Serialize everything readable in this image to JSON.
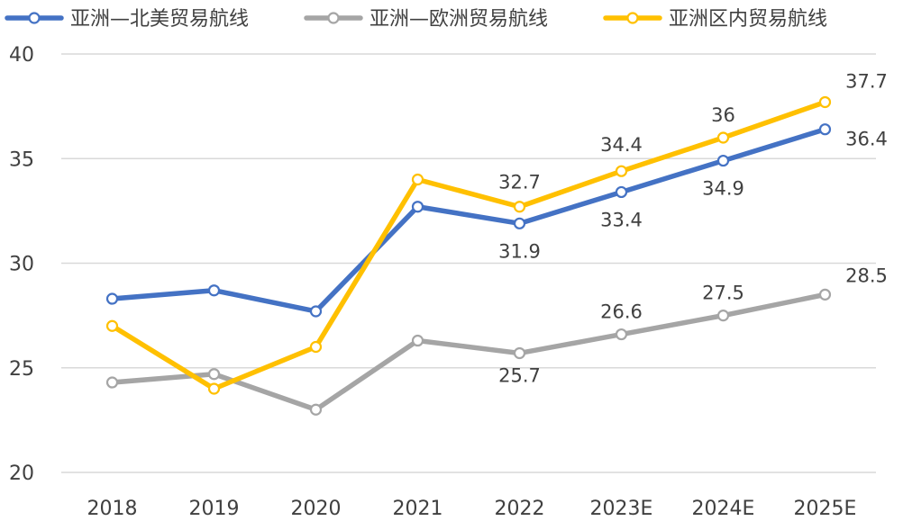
{
  "chart_data": {
    "type": "line",
    "title": "",
    "xlabel": "",
    "ylabel": "",
    "categories": [
      "2018",
      "2019",
      "2020",
      "2021",
      "2022",
      "2023E",
      "2024E",
      "2025E"
    ],
    "ylim": [
      20,
      40
    ],
    "yticks": [
      20,
      25,
      30,
      35,
      40
    ],
    "grid": "horizontal",
    "legend_position": "top",
    "series": [
      {
        "name": "亚洲—北美贸易航线",
        "color": "#4472C4",
        "values": [
          28.3,
          28.7,
          27.7,
          32.7,
          31.9,
          33.4,
          34.9,
          36.4
        ],
        "labels": [
          "",
          "",
          "",
          "",
          "31.9",
          "33.4",
          "34.9",
          "36.4"
        ]
      },
      {
        "name": "亚洲—欧洲贸易航线",
        "color": "#A5A5A5",
        "values": [
          24.3,
          24.7,
          23.0,
          26.3,
          25.7,
          26.6,
          27.5,
          28.5
        ],
        "labels": [
          "",
          "",
          "",
          "",
          "25.7",
          "26.6",
          "27.5",
          "28.5"
        ]
      },
      {
        "name": "亚洲区内贸易航线",
        "color": "#FFC000",
        "values": [
          27.0,
          24.0,
          26.0,
          34.0,
          32.7,
          34.4,
          36.0,
          37.7
        ],
        "labels": [
          "",
          "",
          "",
          "",
          "32.7",
          "34.4",
          "36",
          "37.7"
        ]
      }
    ]
  }
}
